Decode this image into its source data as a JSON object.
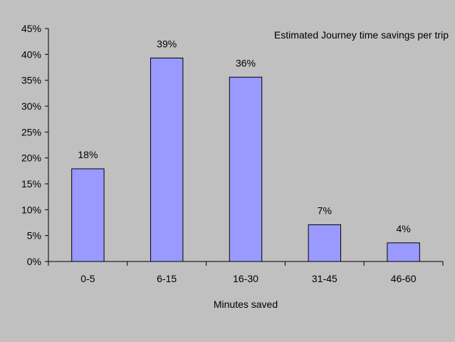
{
  "chart_data": {
    "type": "bar",
    "title": "Estimated Journey time savings per trip",
    "xlabel": "Minutes saved",
    "ylabel": "",
    "categories": [
      "0-5",
      "6-15",
      "16-30",
      "31-45",
      "46-60"
    ],
    "values": [
      18,
      39,
      36,
      7,
      4
    ],
    "value_labels": [
      "18%",
      "39%",
      "36%",
      "7%",
      "4%"
    ],
    "exact_values": [
      17.9,
      39.3,
      35.6,
      7.1,
      3.6
    ],
    "ylim": [
      0,
      45
    ],
    "yticks": [
      0,
      5,
      10,
      15,
      20,
      25,
      30,
      35,
      40,
      45
    ],
    "ytick_labels": [
      "0%",
      "5%",
      "10%",
      "15%",
      "20%",
      "25%",
      "30%",
      "35%",
      "40%",
      "45%"
    ],
    "grid": false,
    "legend": "none",
    "colors": {
      "bar_fill": "#9999ff",
      "bar_stroke": "#000000",
      "plot_background": "#c0c0c0",
      "axis": "#000000"
    }
  }
}
